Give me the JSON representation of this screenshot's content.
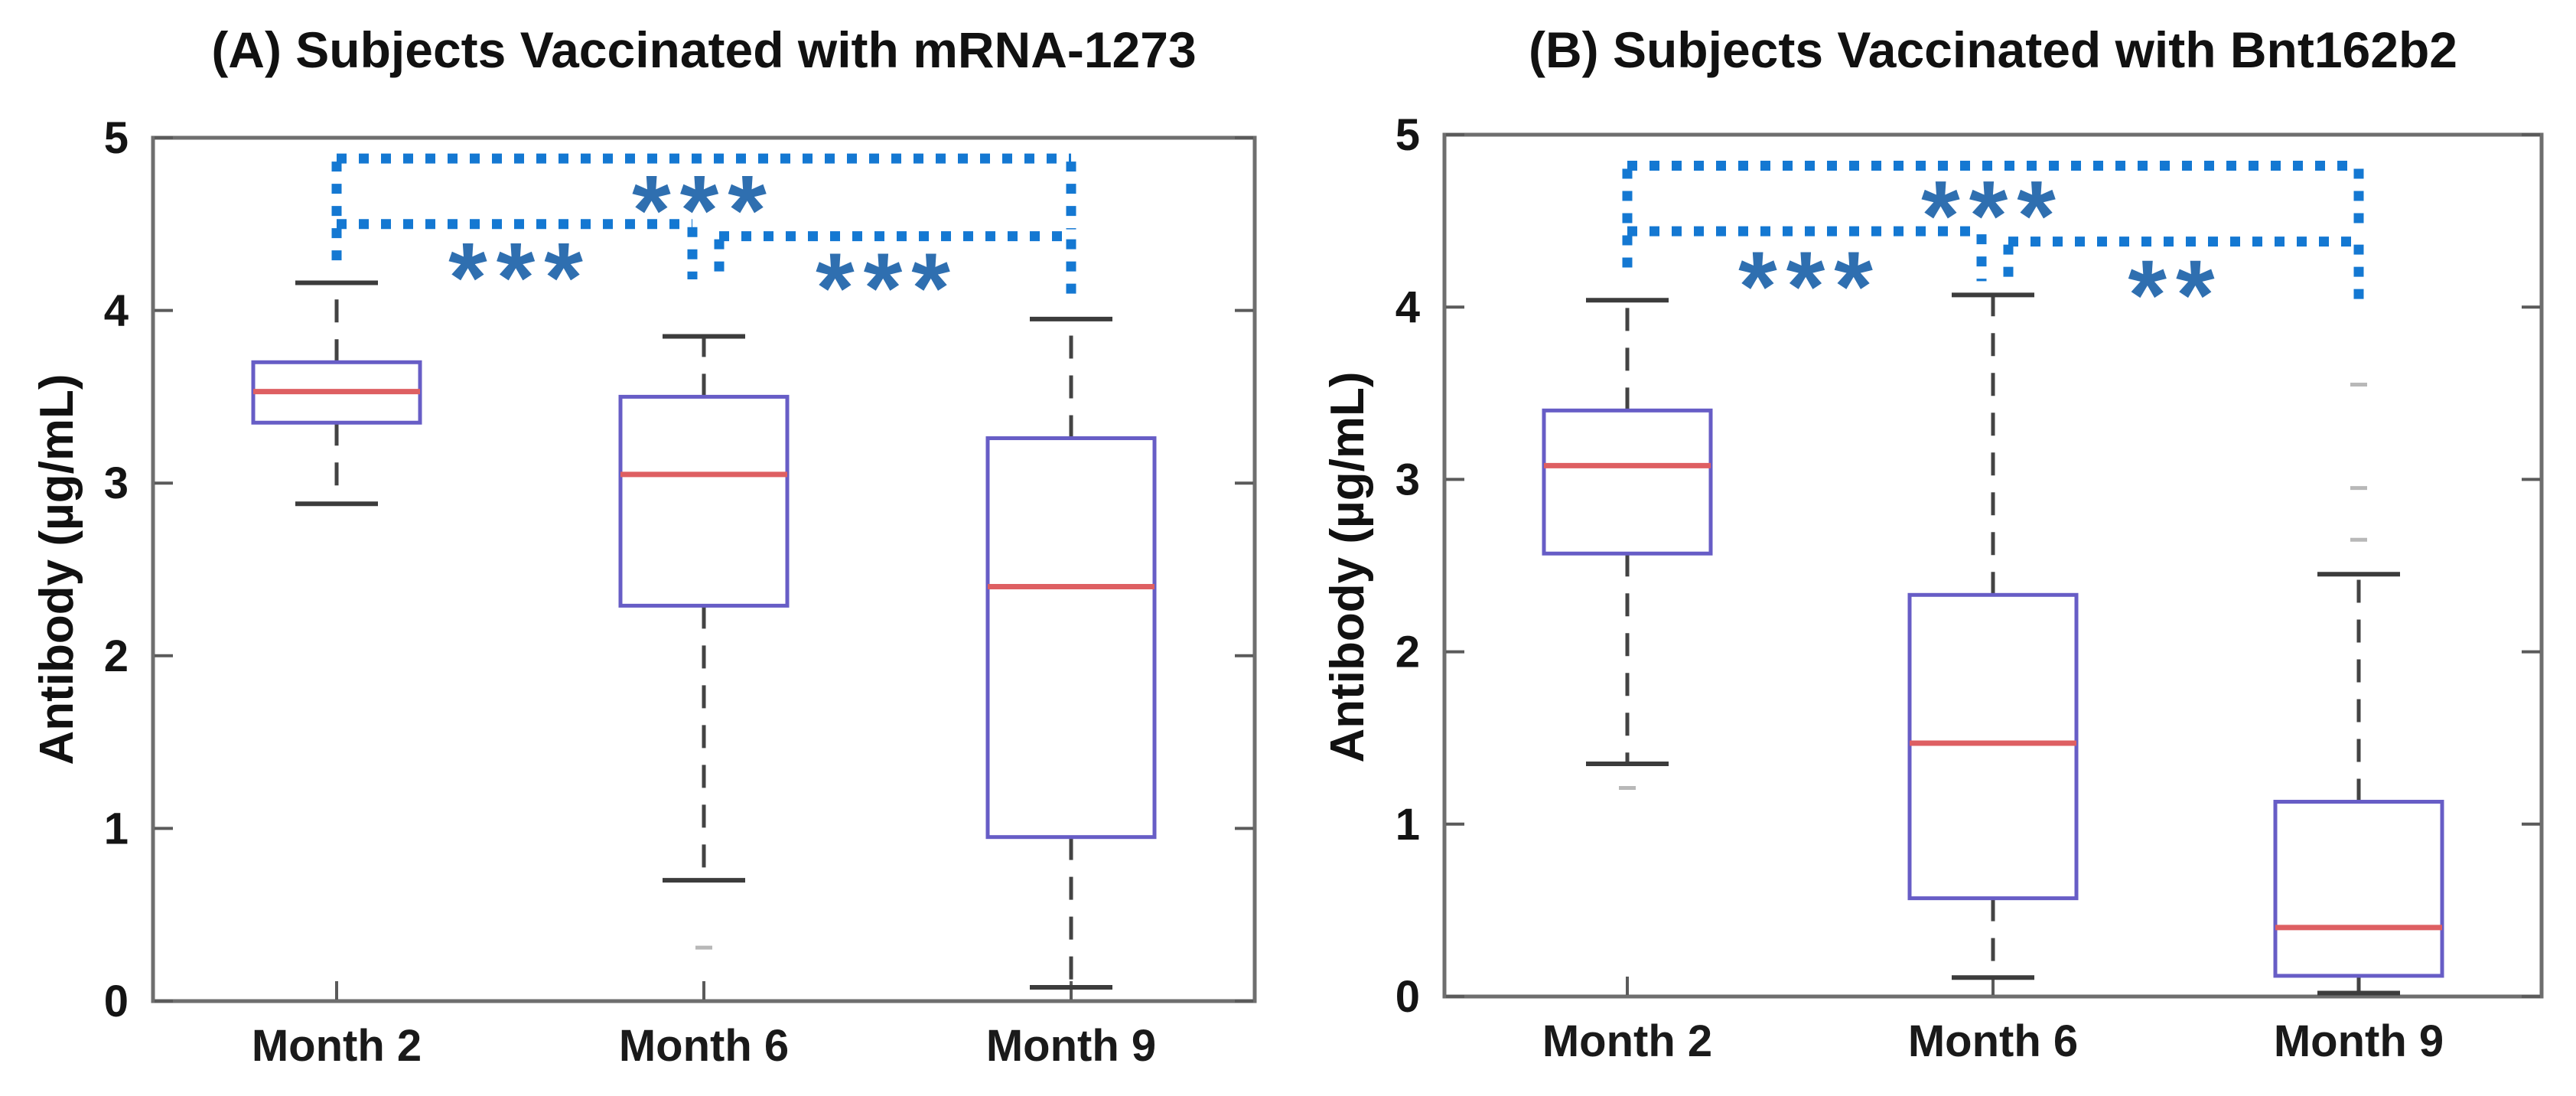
{
  "figure": {
    "description": "Two-panel box plot figure comparing antibody levels over time for two COVID-19 vaccines",
    "background": "#ffffff"
  },
  "style": {
    "frame_color": "#6e6e6e",
    "tick_color": "#5a5a5a",
    "text_color": "#141414",
    "box_color": "#675dc6",
    "median_color": "#de5f62",
    "whisker_color": "#434343",
    "cap_color": "#3c3c3c",
    "bracket_color": "#1478d2",
    "asterisk_color": "#2f6fb0",
    "outlier_color": "#b8b8b8"
  },
  "chart_data": [
    {
      "type": "boxplot",
      "panel_label": "(A)",
      "title": "(A)  Subjects Vaccinated with mRNA-1273",
      "xlabel": "",
      "ylabel": "Antibody (µg/mL)",
      "ylim": [
        0,
        5
      ],
      "yticks": [
        0,
        1,
        2,
        3,
        4,
        5
      ],
      "grid": false,
      "categories": [
        "Month 2",
        "Month 6",
        "Month 9"
      ],
      "boxes": [
        {
          "category": "Month 2",
          "whisker_low": 2.88,
          "q1": 3.35,
          "median": 3.53,
          "q3": 3.7,
          "whisker_high": 4.16,
          "outliers": []
        },
        {
          "category": "Month 6",
          "whisker_low": 0.7,
          "q1": 2.29,
          "median": 3.05,
          "q3": 3.5,
          "whisker_high": 3.85,
          "outliers": [
            0.31
          ]
        },
        {
          "category": "Month 9",
          "whisker_low": 0.08,
          "q1": 0.95,
          "median": 2.4,
          "q3": 3.26,
          "whisker_high": 3.95,
          "outliers": []
        }
      ],
      "significance": [
        {
          "from": "Month 2",
          "to": "Month 9",
          "label": "***",
          "bar_y": 4.88,
          "label_y": 4.67,
          "ends": [
            {
              "cat": 0,
              "dx": 0,
              "drop": 4.27
            },
            {
              "cat": 2,
              "dx": 0,
              "drop": 4.47
            }
          ],
          "between": [
            0,
            2
          ]
        },
        {
          "from": "Month 2",
          "to": "Month 6",
          "label": "***",
          "bar_y": 4.5,
          "label_y": 4.28,
          "ends": [
            {
              "cat": 0,
              "dx": 0,
              "drop": null
            },
            {
              "cat": 1,
              "dx": -15,
              "drop": 4.18
            }
          ],
          "between": [
            0,
            1
          ]
        },
        {
          "from": "Month 6",
          "to": "Month 9",
          "label": "***",
          "bar_y": 4.43,
          "label_y": 4.22,
          "ends": [
            {
              "cat": 1,
              "dx": 20,
              "drop": 4.16
            },
            {
              "cat": 2,
              "dx": 0,
              "drop": 4.05
            }
          ],
          "between": [
            1,
            2
          ]
        }
      ]
    },
    {
      "type": "boxplot",
      "panel_label": "(B)",
      "title": "(B)  Subjects Vaccinated with Bnt162b2",
      "xlabel": "",
      "ylabel": "Antibody (µg/mL)",
      "ylim": [
        0,
        5
      ],
      "yticks": [
        0,
        1,
        2,
        3,
        4,
        5
      ],
      "grid": false,
      "categories": [
        "Month 2",
        "Month 6",
        "Month 9"
      ],
      "boxes": [
        {
          "category": "Month 2",
          "whisker_low": 1.35,
          "q1": 2.57,
          "median": 3.08,
          "q3": 3.4,
          "whisker_high": 4.04,
          "outliers": [
            1.21
          ]
        },
        {
          "category": "Month 6",
          "whisker_low": 0.11,
          "q1": 0.57,
          "median": 1.47,
          "q3": 2.33,
          "whisker_high": 4.07,
          "outliers": []
        },
        {
          "category": "Month 9",
          "whisker_low": 0.02,
          "q1": 0.12,
          "median": 0.4,
          "q3": 1.13,
          "whisker_high": 2.45,
          "outliers": [
            3.55,
            2.95,
            2.65
          ]
        }
      ],
      "significance": [
        {
          "from": "Month 2",
          "to": "Month 9",
          "label": "***",
          "bar_y": 4.82,
          "label_y": 4.62,
          "ends": [
            {
              "cat": 0,
              "dx": 0,
              "drop": 4.18
            },
            {
              "cat": 2,
              "dx": 0,
              "drop": 4.43
            }
          ],
          "between": [
            0,
            2
          ]
        },
        {
          "from": "Month 2",
          "to": "Month 6",
          "label": "***",
          "bar_y": 4.44,
          "label_y": 4.21,
          "ends": [
            {
              "cat": 0,
              "dx": 0,
              "drop": null
            },
            {
              "cat": 1,
              "dx": -15,
              "drop": 4.15
            }
          ],
          "between": [
            0,
            1
          ]
        },
        {
          "from": "Month 6",
          "to": "Month 9",
          "label": "**",
          "bar_y": 4.38,
          "label_y": 4.16,
          "ends": [
            {
              "cat": 1,
              "dx": 20,
              "drop": 4.12
            },
            {
              "cat": 2,
              "dx": 0,
              "drop": 4.03
            }
          ],
          "between": [
            1,
            2
          ]
        }
      ]
    }
  ]
}
